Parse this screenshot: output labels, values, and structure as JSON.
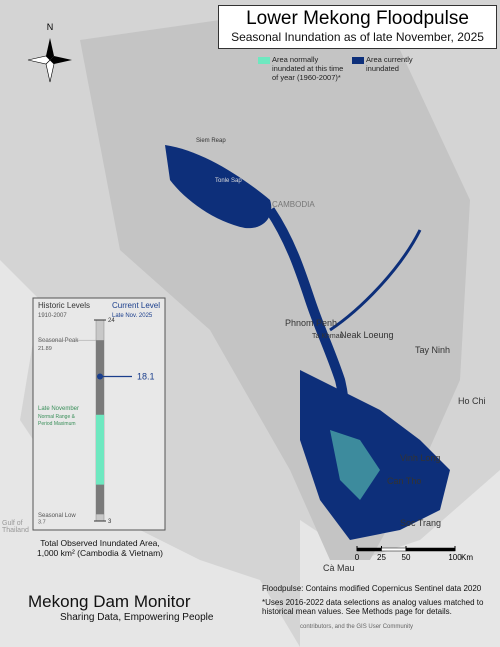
{
  "header": {
    "title": "Lower Mekong Floodpulse",
    "subtitle": "Seasonal Inundation as of late November, 2025"
  },
  "north": "N",
  "legend": [
    {
      "label": "Area normally inundated at this time of year (1960-2007)*",
      "color": "#6ee8c0"
    },
    {
      "label": "Area currently inundated",
      "color": "#0d2f7a"
    }
  ],
  "places": [
    "Siem Reap",
    "Tonle Sap",
    "CAMBODIA",
    "Phnom Penh",
    "Ta Khmau",
    "Neak Loeung",
    "Tay Ninh",
    "Ho Chi",
    "Vinh Long",
    "Can Tho",
    "Soc Trang",
    "Cà Mau",
    "Gulf of Thailand"
  ],
  "gauge": {
    "historic_title": "Historic Levels",
    "historic_years": "1910-2007",
    "current_title": "Current Level",
    "current_date": "Late Nov. 2025",
    "max": 24,
    "min": 3,
    "seasonal_peak_label": "Seasonal Peak",
    "seasonal_peak": 21.89,
    "seasonal_low_label": "Seasonal Low",
    "seasonal_low": 3.7,
    "late_nov_label": "Late November",
    "late_nov_note_1": "Normal Range &",
    "late_nov_note_2": "Period Maximum",
    "normal_range": [
      6.8,
      14.1
    ],
    "current": 18.1,
    "caption": "Total Observed Inundated Area, 1,000 km² (Cambodia & Vietnam)"
  },
  "scale": {
    "ticks": [
      0,
      25,
      50,
      100
    ],
    "unit": "Km"
  },
  "footer": {
    "brand": "Mekong Dam Monitor",
    "tagline": "Sharing Data, Empowering People",
    "credit": "Floodpulse: Contains modified Copernicus Sentinel data 2020",
    "note": "*Uses 2016-2022 data selections as analog values matched to historical mean values. See Methods page for details.",
    "attribution": "contributors, and the GIS User Community"
  }
}
